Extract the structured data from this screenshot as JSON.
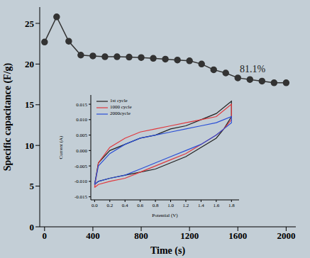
{
  "chart_data": [
    {
      "type": "line",
      "x_label": "Time (s)",
      "y_label": "Specific capacitance (F/g)",
      "annotation": "81.1%",
      "x": [
        0,
        100,
        200,
        300,
        400,
        500,
        600,
        700,
        800,
        900,
        1000,
        1100,
        1200,
        1300,
        1400,
        1500,
        1600,
        1700,
        1800,
        1900,
        2000
      ],
      "series": [
        {
          "name": "Specific capacitance",
          "color": "#333333",
          "marker": "circle",
          "line_style": "solid",
          "values": [
            22.7,
            25.8,
            22.8,
            21.1,
            21.0,
            20.9,
            20.9,
            20.85,
            20.8,
            20.7,
            20.6,
            20.5,
            20.4,
            20.0,
            19.3,
            18.9,
            18.3,
            18.1,
            17.9,
            17.7,
            17.7
          ]
        }
      ],
      "xlim": [
        -40,
        2080
      ],
      "xticks": [
        0,
        400,
        800,
        1200,
        1600,
        2000
      ],
      "ylim": [
        0,
        27
      ],
      "yticks": [
        0,
        5,
        10,
        15,
        20,
        25
      ],
      "grid": false
    },
    {
      "type": "line",
      "x_label": "Potential (V)",
      "y_label": "Current (A)",
      "legend": "upper left",
      "series": [
        {
          "name": "1st cycle",
          "color": "#222222",
          "x": [
            0.0,
            0.05,
            0.2,
            0.4,
            0.6,
            0.8,
            1.0,
            1.2,
            1.4,
            1.6,
            1.8,
            1.8,
            1.7,
            1.6,
            1.4,
            1.2,
            1.0,
            0.8,
            0.6,
            0.4,
            0.2,
            0.05,
            0.0
          ],
          "values": [
            -0.011,
            -0.004,
            0.0,
            0.002,
            0.004,
            0.005,
            0.007,
            0.008,
            0.01,
            0.012,
            0.016,
            0.011,
            0.007,
            0.004,
            0.001,
            -0.002,
            -0.004,
            -0.006,
            -0.007,
            -0.008,
            -0.009,
            -0.01,
            -0.011
          ]
        },
        {
          "name": "1000 cycle",
          "color": "#e0393e",
          "x": [
            0.0,
            0.05,
            0.2,
            0.4,
            0.6,
            0.8,
            1.0,
            1.2,
            1.4,
            1.6,
            1.8,
            1.8,
            1.7,
            1.6,
            1.4,
            1.2,
            1.0,
            0.8,
            0.6,
            0.4,
            0.2,
            0.05,
            0.0
          ],
          "values": [
            -0.012,
            -0.004,
            0.001,
            0.004,
            0.006,
            0.007,
            0.008,
            0.009,
            0.01,
            0.011,
            0.015,
            0.01,
            0.007,
            0.005,
            0.002,
            -0.001,
            -0.003,
            -0.005,
            -0.007,
            -0.009,
            -0.01,
            -0.011,
            -0.012
          ]
        },
        {
          "name": "2000cycle",
          "color": "#2a4fd6",
          "x": [
            0.0,
            0.05,
            0.2,
            0.4,
            0.6,
            0.8,
            1.0,
            1.2,
            1.4,
            1.6,
            1.8,
            1.8,
            1.7,
            1.6,
            1.4,
            1.2,
            1.0,
            0.8,
            0.6,
            0.4,
            0.2,
            0.05,
            0.0
          ],
          "values": [
            -0.011,
            -0.005,
            -0.001,
            0.002,
            0.004,
            0.005,
            0.006,
            0.007,
            0.008,
            0.009,
            0.011,
            0.009,
            0.007,
            0.005,
            0.002,
            0.0,
            -0.002,
            -0.004,
            -0.006,
            -0.008,
            -0.009,
            -0.01,
            -0.011
          ]
        }
      ],
      "xlim": [
        -0.05,
        1.9
      ],
      "xticks": [
        {
          "value": 0,
          "label": "0.0"
        },
        0.2,
        0.4,
        0.6,
        0.8,
        {
          "value": 1,
          "label": "1.0"
        },
        1.2,
        1.4,
        1.6,
        1.8
      ],
      "ylim": [
        -0.016,
        0.018
      ],
      "yticks": [
        -0.015,
        {
          "value": -0.01,
          "label": "-0.010"
        },
        -0.005,
        {
          "value": 0,
          "label": "0.000"
        },
        0.005,
        {
          "value": 0.01,
          "label": "0.010"
        },
        0.015
      ],
      "grid": false
    }
  ]
}
